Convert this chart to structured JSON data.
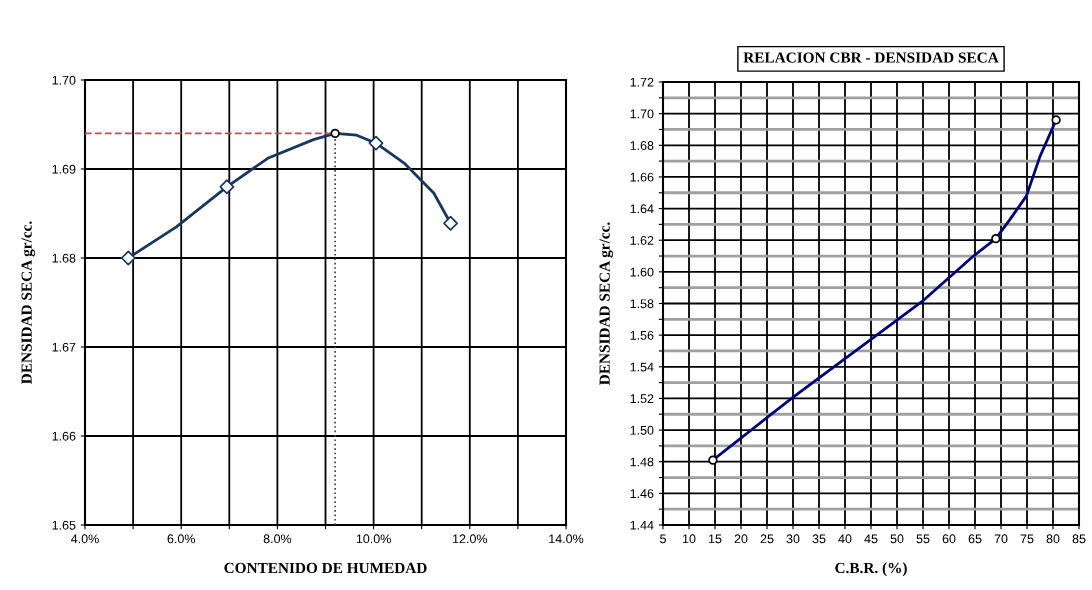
{
  "chart_data": [
    {
      "type": "line",
      "xlabel": "CONTENIDO DE HUMEDAD",
      "ylabel": "DENSIDAD SECA gr/cc.",
      "grid": true,
      "xlim": [
        4.0,
        14.0
      ],
      "ylim": [
        1.65,
        1.7
      ],
      "xticks": [
        {
          "value": 4,
          "label": "4.0%"
        },
        {
          "value": 5,
          "label": null
        },
        {
          "value": 6,
          "label": "6.0%"
        },
        {
          "value": 7,
          "label": null
        },
        {
          "value": 8,
          "label": "8.0%"
        },
        {
          "value": 9,
          "label": null
        },
        {
          "value": 10,
          "label": "10.0%"
        },
        {
          "value": 11,
          "label": null
        },
        {
          "value": 12,
          "label": "12.0%"
        },
        {
          "value": 13,
          "label": null
        },
        {
          "value": 14,
          "label": "14.0%"
        }
      ],
      "yticks": [
        {
          "value": 1.65,
          "label": "1.65"
        },
        {
          "value": 1.66,
          "label": "1.66"
        },
        {
          "value": 1.67,
          "label": "1.67"
        },
        {
          "value": 1.68,
          "label": "1.68"
        },
        {
          "value": 1.69,
          "label": "1.69"
        },
        {
          "value": 1.7,
          "label": "1.70"
        }
      ],
      "series": [
        {
          "color": "#17375e",
          "marker": "none",
          "line_style": "solid",
          "x": [
            4.9,
            5.9,
            6.95,
            7.8,
            8.75,
            9.2,
            9.65,
            10.05,
            10.65,
            11.25,
            11.6
          ],
          "values": [
            1.68,
            1.6835,
            1.688,
            1.6912,
            1.6933,
            1.694,
            1.6938,
            1.6929,
            1.6906,
            1.6873,
            1.6839
          ]
        },
        {
          "type": "scatter",
          "color": "#17375e",
          "marker": "diamond",
          "x": [
            4.9,
            6.95,
            10.05,
            11.6
          ],
          "values": [
            1.68,
            1.688,
            1.6929,
            1.6839
          ]
        },
        {
          "color": "#c0504d",
          "marker": "none",
          "line_style": "dashed",
          "x": [
            4.0,
            9.2
          ],
          "values": [
            1.694,
            1.694
          ]
        },
        {
          "color": "#404040",
          "marker": "none",
          "line_style": "dotted",
          "x": [
            9.2,
            9.2
          ],
          "values": [
            1.65,
            1.694
          ]
        },
        {
          "type": "scatter",
          "color": "#000000",
          "marker": "circle",
          "x": [
            9.2
          ],
          "values": [
            1.694
          ]
        }
      ]
    },
    {
      "type": "line",
      "title": "RELACION CBR - DENSIDAD SECA",
      "xlabel": "C.B.R. (%)",
      "ylabel": "DENSIDAD SECA gr/cc.",
      "grid": true,
      "xlim": [
        5,
        85
      ],
      "ylim": [
        1.44,
        1.72
      ],
      "xticks": [
        5,
        10,
        15,
        20,
        25,
        30,
        35,
        40,
        45,
        50,
        55,
        60,
        65,
        70,
        75,
        80,
        85
      ],
      "yticks": [
        {
          "value": 1.44,
          "label": "1.44"
        },
        {
          "value": 1.45,
          "label": null
        },
        {
          "value": 1.46,
          "label": "1.46"
        },
        {
          "value": 1.47,
          "label": null
        },
        {
          "value": 1.48,
          "label": "1.48"
        },
        {
          "value": 1.49,
          "label": null
        },
        {
          "value": 1.5,
          "label": "1.50"
        },
        {
          "value": 1.51,
          "label": null
        },
        {
          "value": 1.52,
          "label": "1.52"
        },
        {
          "value": 1.53,
          "label": null
        },
        {
          "value": 1.54,
          "label": "1.54"
        },
        {
          "value": 1.55,
          "label": null
        },
        {
          "value": 1.56,
          "label": "1.56"
        },
        {
          "value": 1.57,
          "label": null
        },
        {
          "value": 1.58,
          "label": "1.58"
        },
        {
          "value": 1.59,
          "label": null
        },
        {
          "value": 1.6,
          "label": "1.60"
        },
        {
          "value": 1.61,
          "label": null
        },
        {
          "value": 1.62,
          "label": "1.62"
        },
        {
          "value": 1.63,
          "label": null
        },
        {
          "value": 1.64,
          "label": "1.64"
        },
        {
          "value": 1.65,
          "label": null
        },
        {
          "value": 1.66,
          "label": "1.66"
        },
        {
          "value": 1.67,
          "label": null
        },
        {
          "value": 1.68,
          "label": "1.68"
        },
        {
          "value": 1.69,
          "label": null
        },
        {
          "value": 1.7,
          "label": "1.70"
        },
        {
          "value": 1.71,
          "label": null
        },
        {
          "value": 1.72,
          "label": "1.72"
        }
      ],
      "series": [
        {
          "color": "#000080",
          "marker": "none",
          "line_style": "solid",
          "x": [
            14.6,
            30.1,
            55.1,
            64.7,
            69.0,
            71.7,
            74.9,
            77.5,
            80.6
          ],
          "values": [
            1.481,
            1.521,
            1.582,
            1.61,
            1.621,
            1.633,
            1.648,
            1.673,
            1.696
          ]
        },
        {
          "type": "scatter",
          "color": "#000000",
          "marker": "circle",
          "x": [
            14.6,
            69.0,
            80.6
          ],
          "values": [
            1.481,
            1.621,
            1.696
          ]
        }
      ]
    }
  ]
}
